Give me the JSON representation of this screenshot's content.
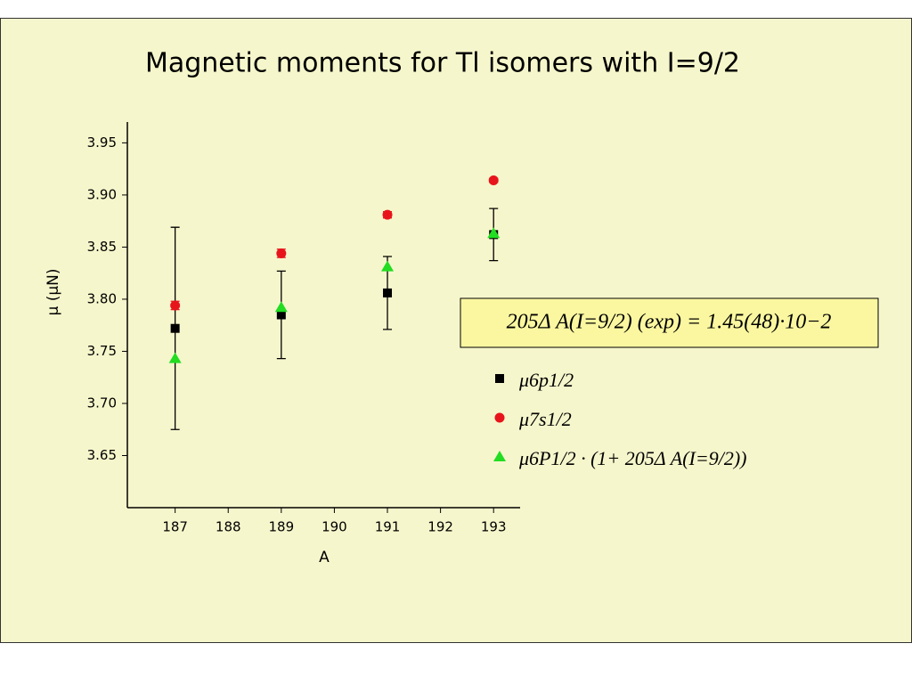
{
  "chart_data": {
    "type": "scatter",
    "title": "Magnetic moments for Tl isomers with I=9/2",
    "x_label": "A",
    "y_label": "μ (μN)",
    "xlim": [
      186.1,
      193.5
    ],
    "xticks": [
      187,
      188,
      189,
      190,
      191,
      192,
      193
    ],
    "ylim": [
      3.6,
      3.97
    ],
    "yticks": [
      3.65,
      {
        "value": 3.7,
        "label": "3.70"
      },
      3.75,
      {
        "value": 3.8,
        "label": "3.80"
      },
      3.85,
      {
        "value": 3.9,
        "label": "3.90"
      },
      3.95
    ],
    "x": [
      187,
      189,
      191,
      193
    ],
    "series": [
      {
        "name": "μ6p1/2",
        "color": "#000000",
        "marker": "square",
        "values": [
          3.772,
          3.785,
          3.806,
          3.862
        ],
        "errors": [
          0.097,
          0.042,
          0.035,
          0.025
        ]
      },
      {
        "name": "μ7s1/2",
        "color": "#e8141b",
        "marker": "circle",
        "values": [
          3.794,
          3.844,
          3.881,
          3.914
        ],
        "errors": [
          0.004,
          0.004,
          0.003,
          0.002
        ]
      },
      {
        "name": "μ6P1/2 · (1+ 205Δ A(I=9/2))",
        "color": "#22dd22",
        "marker": "triangle",
        "values": [
          3.743,
          3.792,
          3.831,
          3.863
        ]
      }
    ],
    "annotation": "205Δ A(I=9/2) (exp) = 1.45(48)·10−2"
  }
}
